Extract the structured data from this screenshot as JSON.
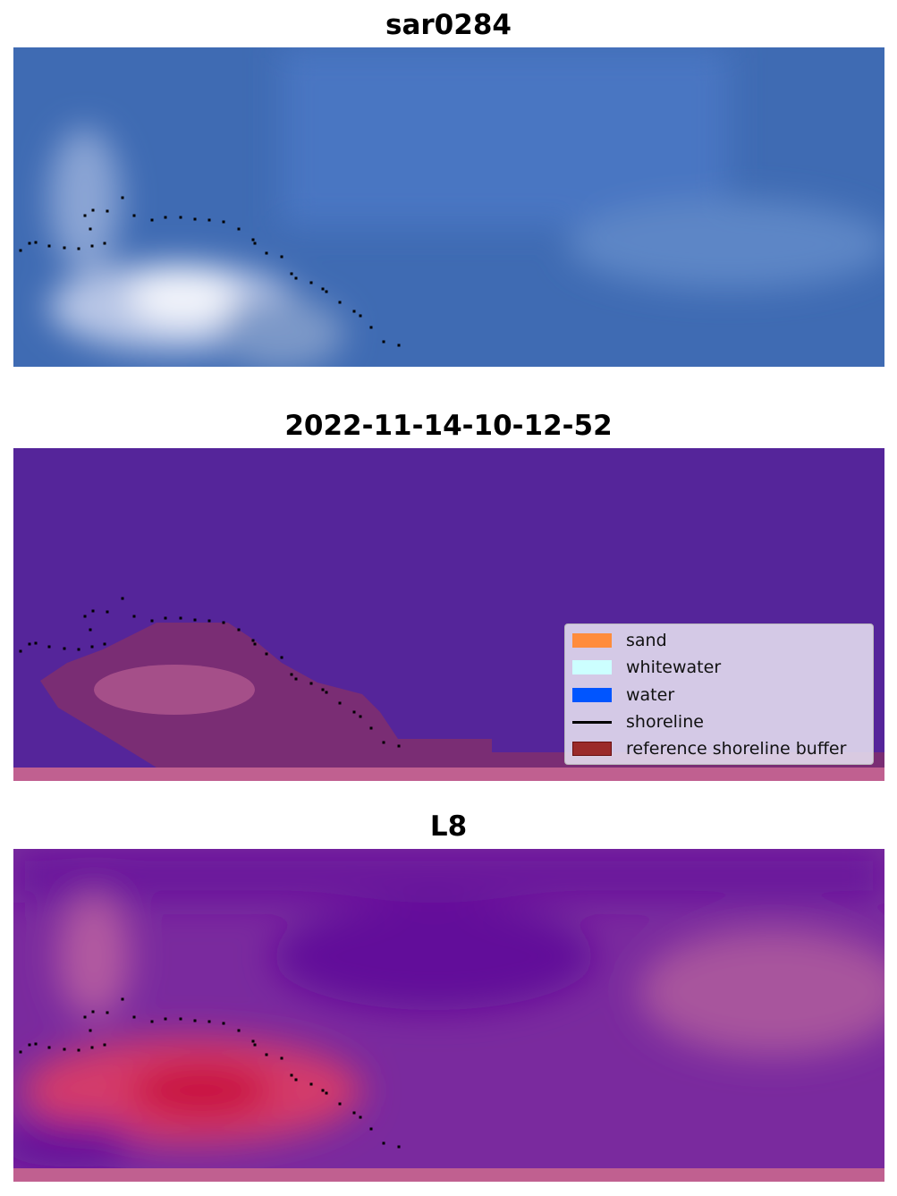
{
  "panels": [
    {
      "title": "sar0284",
      "kind": "rgb-image"
    },
    {
      "title": "2022-11-14-10-12-52",
      "kind": "classified-image"
    },
    {
      "title": "L8",
      "kind": "index-image"
    }
  ],
  "legend": {
    "items": [
      {
        "label": "sand",
        "type": "patch",
        "color": "#ff8c3c"
      },
      {
        "label": "whitewater",
        "type": "patch",
        "color": "#ccffff"
      },
      {
        "label": "water",
        "type": "patch",
        "color": "#0055ff"
      },
      {
        "label": "shoreline",
        "type": "line",
        "color": "#000000"
      },
      {
        "label": "reference shoreline buffer",
        "type": "patch",
        "color": "#9b2a2a"
      }
    ]
  },
  "colors": {
    "water_class": "#55259a",
    "buffer_strip": "#c06090",
    "rgb_water": "#3f6bb3"
  }
}
